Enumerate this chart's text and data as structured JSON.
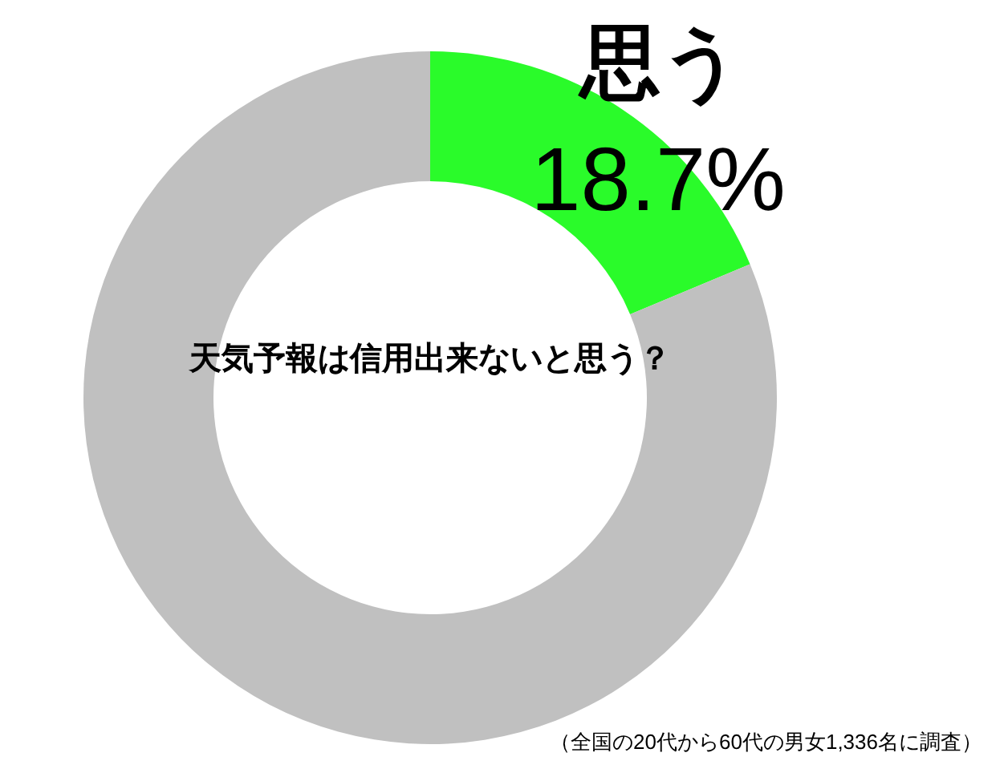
{
  "chart_data": {
    "type": "donut",
    "title": "天気予報は信用出来ないと思う？",
    "categories": [
      "思う",
      null
    ],
    "values": [
      18.7,
      81.3
    ],
    "colors": [
      "#2afb2a",
      "#c0c0c0"
    ],
    "value_labels": [
      "18.7%",
      null
    ],
    "annotations": [
      "（全国の20代から60代の男女1,336名に調査）"
    ]
  }
}
